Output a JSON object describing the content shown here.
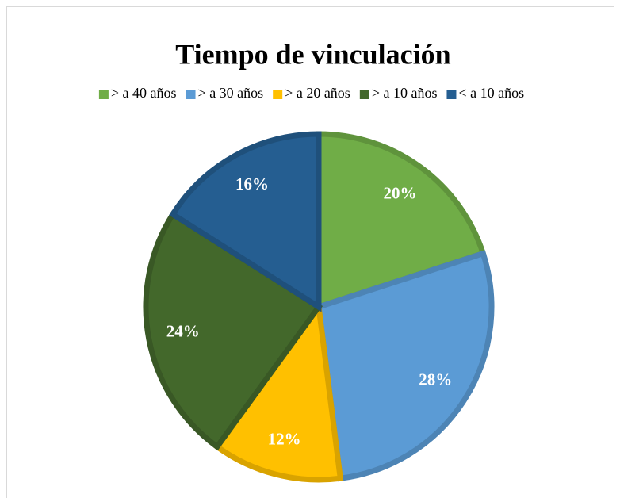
{
  "chart_data": {
    "type": "pie",
    "title": "Tiempo de vinculación",
    "categories": [
      "> a 40 años",
      "> a 30 años",
      "> a 20 años",
      "> a 10 años",
      "< a 10 años"
    ],
    "values": [
      20,
      28,
      12,
      24,
      16
    ],
    "value_labels": [
      "20%",
      "28%",
      "12%",
      "24%",
      "16%"
    ],
    "colors": [
      "#70ad47",
      "#5b9bd5",
      "#ffc000",
      "#43682b",
      "#255e91"
    ],
    "legend": "top"
  }
}
